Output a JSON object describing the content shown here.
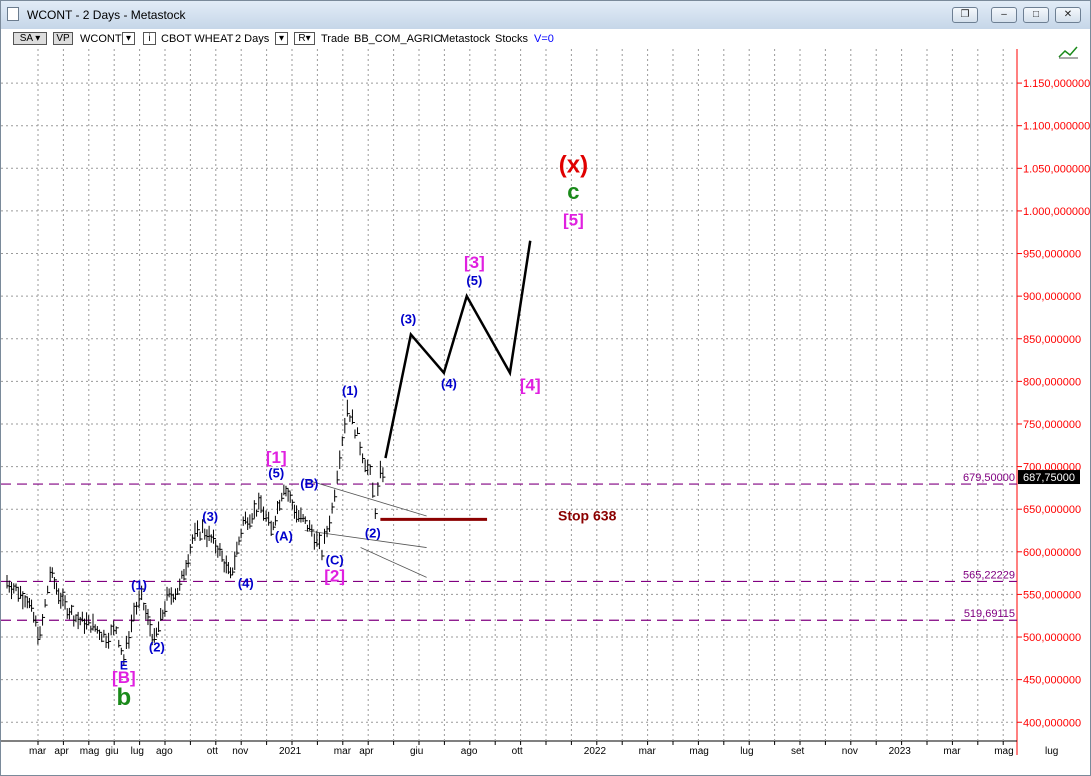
{
  "window": {
    "title": "WCONT - 2 Days - Metastock",
    "buttons": [
      "restore-down",
      "minimize",
      "maximize",
      "close"
    ]
  },
  "toolbar": {
    "sa": "SA",
    "vp": "VP",
    "symbol": "WCONT",
    "instrument": "CBOT WHEAT",
    "period": "2 Days",
    "r_box": "R",
    "mode": "Trade",
    "category": "BB_COM_AGRIC",
    "source": "Metastock",
    "type": "Stocks",
    "v": "V=0"
  },
  "colors": {
    "background": "#ffffff",
    "price_axis": "#ff0000",
    "wave_blue": "#0000cc",
    "wave_magenta": "#e020e0",
    "wave_green": "#1a8a1a",
    "wave_red": "#e00000",
    "stop_line": "#8b0000",
    "horizontal_levels": "#800080",
    "price_bars": "#000000"
  },
  "chart_data": {
    "type": "line",
    "price_axis": {
      "ticks": [
        "1.150,000000",
        "1.100,000000",
        "1.050,000000",
        "1.000,000000",
        "950,000000",
        "900,000000",
        "850,000000",
        "800,000000",
        "750,000000",
        "700,000000",
        "650,000000",
        "600,000000",
        "550,000000",
        "500,000000",
        "450,000000",
        "400,000000"
      ],
      "tick_values": [
        1150,
        1100,
        1050,
        1000,
        950,
        900,
        850,
        800,
        750,
        700,
        650,
        600,
        550,
        500,
        450,
        400
      ],
      "ylim": [
        378,
        1190
      ]
    },
    "time_axis": {
      "labels": [
        "mar",
        "apr",
        "mag",
        "giu",
        "lug",
        "ago",
        "ott",
        "nov",
        "2021",
        "mar",
        "apr",
        "giu",
        "ago",
        "ott",
        "2022",
        "mar",
        "mag",
        "lug",
        "set",
        "nov",
        "2023",
        "mar",
        "mag",
        "lug"
      ],
      "label_index": [
        0,
        1,
        2,
        3,
        4,
        5,
        7,
        8,
        10,
        12,
        13,
        15,
        17,
        19,
        22,
        24,
        26,
        28,
        30,
        32,
        34,
        36,
        38,
        40
      ],
      "months": 41
    },
    "grid": true,
    "price_bars": {
      "description_points": [
        [
          0.0,
          565
        ],
        [
          0.8,
          545
        ],
        [
          1.3,
          500
        ],
        [
          1.7,
          575
        ],
        [
          2.2,
          540
        ],
        [
          2.8,
          520
        ],
        [
          3.3,
          515
        ],
        [
          3.9,
          500
        ],
        [
          4.3,
          510
        ],
        [
          4.6,
          474
        ],
        [
          5.0,
          530
        ],
        [
          5.3,
          545
        ],
        [
          5.8,
          495
        ],
        [
          6.3,
          545
        ],
        [
          6.8,
          558
        ],
        [
          7.3,
          615
        ],
        [
          7.7,
          627
        ],
        [
          8.3,
          605
        ],
        [
          8.8,
          570
        ],
        [
          9.3,
          635
        ],
        [
          10.0,
          655
        ],
        [
          10.4,
          625
        ],
        [
          10.9,
          678
        ],
        [
          11.4,
          645
        ],
        [
          12.0,
          625
        ],
        [
          12.4,
          600
        ],
        [
          12.8,
          650
        ],
        [
          13.1,
          715
        ],
        [
          13.4,
          770
        ],
        [
          13.7,
          745
        ],
        [
          14.0,
          715
        ],
        [
          14.3,
          690
        ],
        [
          14.5,
          650
        ],
        [
          14.7,
          690
        ],
        [
          14.9,
          700
        ]
      ]
    },
    "projection": {
      "x": [
        14.9,
        15.9,
        17.2,
        18.1,
        19.8,
        20.6
      ],
      "y": [
        710,
        855,
        810,
        900,
        810,
        965
      ]
    },
    "horizontal_levels": [
      {
        "label": "679,50000",
        "value": 679.5
      },
      {
        "label": "565,22229",
        "value": 565.22
      },
      {
        "label": "519,69115",
        "value": 519.69
      }
    ],
    "current_price": {
      "label": "687,75000",
      "value": 687.75
    },
    "stop": {
      "label": "Stop 638",
      "value": 638,
      "x_start": 14.7,
      "x_end": 18.9
    },
    "channel_lines": [
      {
        "x": [
          10.5,
          15.3
        ],
        "y": [
          685,
          642
        ]
      },
      {
        "x": [
          10.5,
          15.3
        ],
        "y": [
          625,
          605
        ]
      },
      {
        "x": [
          12.7,
          15.3
        ],
        "y": [
          605,
          570
        ]
      }
    ],
    "wave_labels": [
      {
        "text": "E",
        "x": 4.6,
        "y": 462,
        "color": "#0000cc",
        "size": 12
      },
      {
        "text": "[B]",
        "x": 4.6,
        "y": 446,
        "color": "#e020e0",
        "size": 17
      },
      {
        "text": "b",
        "x": 4.6,
        "y": 420,
        "color": "#1a8a1a",
        "size": 24
      },
      {
        "text": "(1)",
        "x": 5.2,
        "y": 556,
        "color": "#0000cc",
        "size": 13
      },
      {
        "text": "(2)",
        "x": 5.9,
        "y": 483,
        "color": "#0000cc",
        "size": 13
      },
      {
        "text": "(3)",
        "x": 8.0,
        "y": 636,
        "color": "#0000cc",
        "size": 13
      },
      {
        "text": "(4)",
        "x": 9.4,
        "y": 558,
        "color": "#0000cc",
        "size": 13
      },
      {
        "text": "(5)",
        "x": 10.6,
        "y": 687,
        "color": "#0000cc",
        "size": 13
      },
      {
        "text": "[1]",
        "x": 10.6,
        "y": 704,
        "color": "#e020e0",
        "size": 17
      },
      {
        "text": "(A)",
        "x": 10.9,
        "y": 613,
        "color": "#0000cc",
        "size": 13
      },
      {
        "text": "(B)",
        "x": 11.9,
        "y": 675,
        "color": "#0000cc",
        "size": 13
      },
      {
        "text": "(C)",
        "x": 12.9,
        "y": 585,
        "color": "#0000cc",
        "size": 13
      },
      {
        "text": "[2]",
        "x": 12.9,
        "y": 565,
        "color": "#e020e0",
        "size": 17
      },
      {
        "text": "(1)",
        "x": 13.5,
        "y": 784,
        "color": "#0000cc",
        "size": 13
      },
      {
        "text": "(2)",
        "x": 14.4,
        "y": 617,
        "color": "#0000cc",
        "size": 13
      },
      {
        "text": "(3)",
        "x": 15.8,
        "y": 868,
        "color": "#0000cc",
        "size": 13
      },
      {
        "text": "(4)",
        "x": 17.4,
        "y": 792,
        "color": "#0000cc",
        "size": 13
      },
      {
        "text": "(5)",
        "x": 18.4,
        "y": 913,
        "color": "#0000cc",
        "size": 13
      },
      {
        "text": "[3]",
        "x": 18.4,
        "y": 933,
        "color": "#e020e0",
        "size": 17
      },
      {
        "text": "[4]",
        "x": 20.6,
        "y": 789,
        "color": "#e020e0",
        "size": 17
      },
      {
        "text": "[5]",
        "x": 22.3,
        "y": 983,
        "color": "#e020e0",
        "size": 17
      },
      {
        "text": "c",
        "x": 22.3,
        "y": 1014,
        "color": "#1a8a1a",
        "size": 22
      },
      {
        "text": "(x)",
        "x": 22.3,
        "y": 1045,
        "color": "#e00000",
        "size": 24
      }
    ]
  }
}
